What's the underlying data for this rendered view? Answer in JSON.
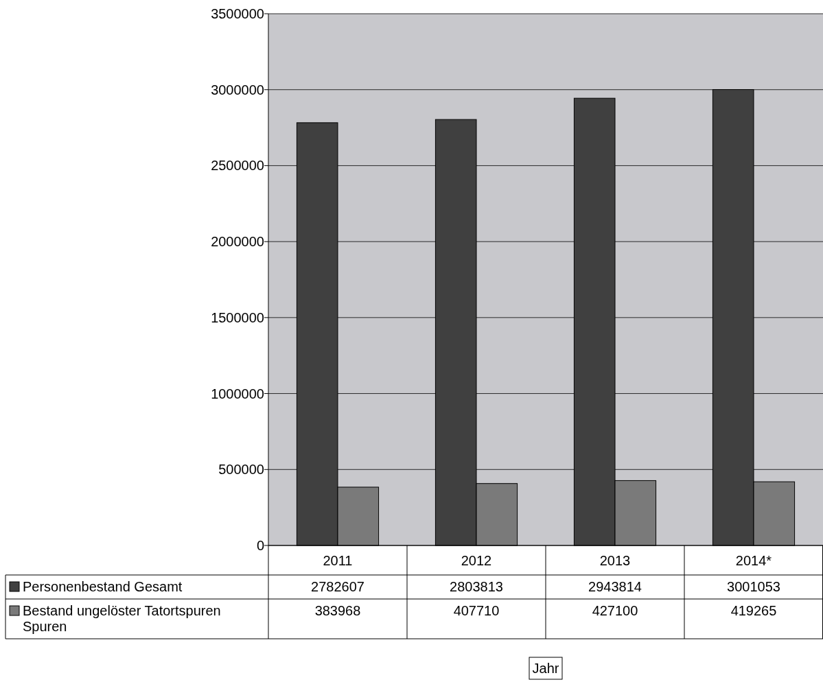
{
  "chart_data": {
    "type": "bar",
    "annotations": [
      "Jahr"
    ],
    "categories": [
      "2011",
      "2012",
      "2013",
      "2014*"
    ],
    "series": [
      {
        "name": "Personenbestand Gesamt",
        "color": "#404040",
        "values": [
          2782607,
          2803813,
          2943814,
          3001053
        ]
      },
      {
        "name": "Bestand ungelöster Tatortspuren Spuren",
        "color": "#7a7a7a",
        "values": [
          383968,
          407710,
          427100,
          419265
        ]
      }
    ],
    "ylim": [
      0,
      3500000
    ],
    "yticks": [
      0,
      500000,
      1000000,
      1500000,
      2000000,
      2500000,
      3000000,
      3500000
    ],
    "grid": "y",
    "legend": "bottom",
    "data_labels": true
  }
}
